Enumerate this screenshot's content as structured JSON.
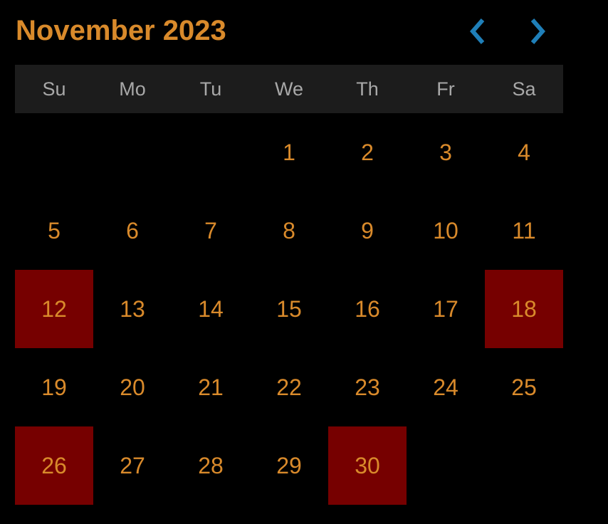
{
  "header": {
    "title": "November 2023",
    "prev_icon": "chevron-left-icon",
    "next_icon": "chevron-right-icon"
  },
  "weekdays": [
    "Su",
    "Mo",
    "Tu",
    "We",
    "Th",
    "Fr",
    "Sa"
  ],
  "leading_blank_days": 3,
  "days": [
    {
      "label": "1",
      "marked": false
    },
    {
      "label": "2",
      "marked": false
    },
    {
      "label": "3",
      "marked": false
    },
    {
      "label": "4",
      "marked": false
    },
    {
      "label": "5",
      "marked": false
    },
    {
      "label": "6",
      "marked": false
    },
    {
      "label": "7",
      "marked": false
    },
    {
      "label": "8",
      "marked": false
    },
    {
      "label": "9",
      "marked": false
    },
    {
      "label": "10",
      "marked": false
    },
    {
      "label": "11",
      "marked": false
    },
    {
      "label": "12",
      "marked": true
    },
    {
      "label": "13",
      "marked": false
    },
    {
      "label": "14",
      "marked": false
    },
    {
      "label": "15",
      "marked": false
    },
    {
      "label": "16",
      "marked": false
    },
    {
      "label": "17",
      "marked": false
    },
    {
      "label": "18",
      "marked": true
    },
    {
      "label": "19",
      "marked": false
    },
    {
      "label": "20",
      "marked": false
    },
    {
      "label": "21",
      "marked": false
    },
    {
      "label": "22",
      "marked": false
    },
    {
      "label": "23",
      "marked": false
    },
    {
      "label": "24",
      "marked": false
    },
    {
      "label": "25",
      "marked": false
    },
    {
      "label": "26",
      "marked": true
    },
    {
      "label": "27",
      "marked": false
    },
    {
      "label": "28",
      "marked": false
    },
    {
      "label": "29",
      "marked": false
    },
    {
      "label": "30",
      "marked": true
    }
  ],
  "colors": {
    "background": "#000000",
    "accent": "#d98a2b",
    "nav": "#1f7fb8",
    "weekday_bar": "#1c1c1c",
    "weekday_text": "#a8a8a8",
    "marked_day": "#760000"
  }
}
